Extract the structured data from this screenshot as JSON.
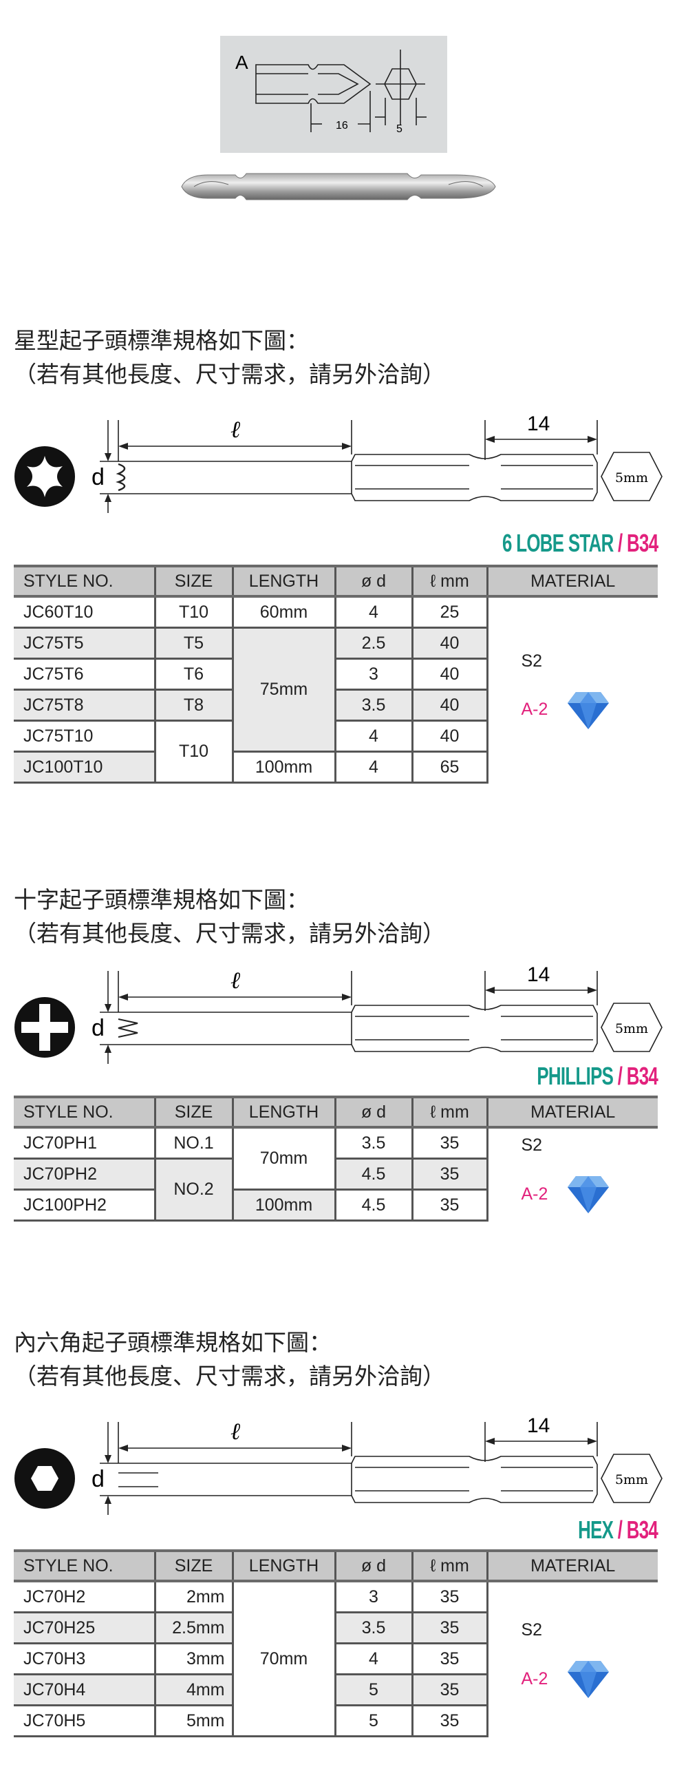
{
  "top_diagram": {
    "label_a": "A",
    "dim_16": "16",
    "dim_5": "5"
  },
  "sections": [
    {
      "id": "torx",
      "heading_line1": "星型起子頭標準規格如下圖：",
      "heading_line2": "（若有其他長度、尺寸需求，請另外洽詢）",
      "diagram": {
        "ell": "ℓ",
        "d": "d",
        "dim_14": "14",
        "hex": "5mm"
      },
      "type_label": "6 LOBE STAR",
      "sep": " / ",
      "code_label": "B34",
      "headers": [
        "STYLE NO.",
        "SIZE",
        "LENGTH",
        "ø d",
        "ℓ mm",
        "MATERIAL"
      ],
      "material": {
        "line1": "S2",
        "line2": "A-2",
        "icon": "diamond-icon"
      },
      "rows": [
        [
          {
            "t": "JC60T10"
          },
          {
            "t": "T10"
          },
          {
            "t": "60mm"
          },
          {
            "t": "4"
          },
          {
            "t": "25"
          }
        ],
        [
          {
            "t": "JC75T5",
            "g": true
          },
          {
            "t": "T5",
            "g": true
          },
          {
            "t": "75mm",
            "rs": 4,
            "g": true
          },
          {
            "t": "2.5",
            "g": true
          },
          {
            "t": "40",
            "g": true
          }
        ],
        [
          {
            "t": "JC75T6"
          },
          {
            "t": "T6"
          },
          {
            "t": "3"
          },
          {
            "t": "40"
          }
        ],
        [
          {
            "t": "JC75T8",
            "g": true
          },
          {
            "t": "T8",
            "g": true
          },
          {
            "t": "3.5",
            "g": true
          },
          {
            "t": "40",
            "g": true
          }
        ],
        [
          {
            "t": "JC75T10"
          },
          {
            "t": "T10",
            "rs": 2
          },
          {
            "t": "4"
          },
          {
            "t": "40"
          }
        ],
        [
          {
            "t": "JC100T10",
            "g": true
          },
          {
            "t": "100mm"
          },
          {
            "t": "4"
          },
          {
            "t": "65"
          }
        ]
      ]
    },
    {
      "id": "phillips",
      "heading_line1": "十字起子頭標準規格如下圖：",
      "heading_line2": "（若有其他長度、尺寸需求，請另外洽詢）",
      "diagram": {
        "ell": "ℓ",
        "d": "d",
        "dim_14": "14",
        "hex": "5mm"
      },
      "type_label": "PHILLIPS",
      "sep": " / ",
      "code_label": "B34",
      "headers": [
        "STYLE NO.",
        "SIZE",
        "LENGTH",
        "ø d",
        "ℓ mm",
        "MATERIAL"
      ],
      "material": {
        "line1": "S2",
        "line2": "A-2",
        "icon": "diamond-icon"
      },
      "rows": [
        [
          {
            "t": "JC70PH1"
          },
          {
            "t": "NO.1"
          },
          {
            "t": "70mm",
            "rs": 2
          },
          {
            "t": "3.5"
          },
          {
            "t": "35"
          }
        ],
        [
          {
            "t": "JC70PH2",
            "g": true
          },
          {
            "t": "NO.2",
            "rs": 2,
            "g": true
          },
          {
            "t": "4.5",
            "g": true
          },
          {
            "t": "35",
            "g": true
          }
        ],
        [
          {
            "t": "JC100PH2"
          },
          {
            "t": "100mm",
            "g": true
          },
          {
            "t": "4.5"
          },
          {
            "t": "35"
          }
        ]
      ]
    },
    {
      "id": "hex",
      "heading_line1": "內六角起子頭標準規格如下圖：",
      "heading_line2": "（若有其他長度、尺寸需求，請另外洽詢）",
      "diagram": {
        "ell": "ℓ",
        "d": "d",
        "dim_14": "14",
        "hex": "5mm"
      },
      "type_label": "HEX",
      "sep": " / ",
      "code_label": "B34",
      "headers": [
        "STYLE NO.",
        "SIZE",
        "LENGTH",
        "ø d",
        "ℓ mm",
        "MATERIAL"
      ],
      "material": {
        "line1": "S2",
        "line2": "A-2",
        "icon": "diamond-icon"
      },
      "rows": [
        [
          {
            "t": "JC70H2"
          },
          {
            "t": "2mm",
            "r": true
          },
          {
            "t": "70mm",
            "rs": 5
          },
          {
            "t": "3"
          },
          {
            "t": "35"
          }
        ],
        [
          {
            "t": "JC70H25",
            "g": true
          },
          {
            "t": "2.5mm",
            "r": true,
            "g": true
          },
          {
            "t": "3.5",
            "g": true
          },
          {
            "t": "35",
            "g": true
          }
        ],
        [
          {
            "t": "JC70H3"
          },
          {
            "t": "3mm",
            "r": true
          },
          {
            "t": "4"
          },
          {
            "t": "35"
          }
        ],
        [
          {
            "t": "JC70H4",
            "g": true
          },
          {
            "t": "4mm",
            "r": true,
            "g": true
          },
          {
            "t": "5",
            "g": true
          },
          {
            "t": "35",
            "g": true
          }
        ],
        [
          {
            "t": "JC70H5"
          },
          {
            "t": "5mm",
            "r": true
          },
          {
            "t": "5"
          },
          {
            "t": "35"
          }
        ]
      ]
    }
  ],
  "colors": {
    "teal": "#15998a",
    "pink": "#e2217c",
    "header_gray": "#c8c8c8"
  }
}
